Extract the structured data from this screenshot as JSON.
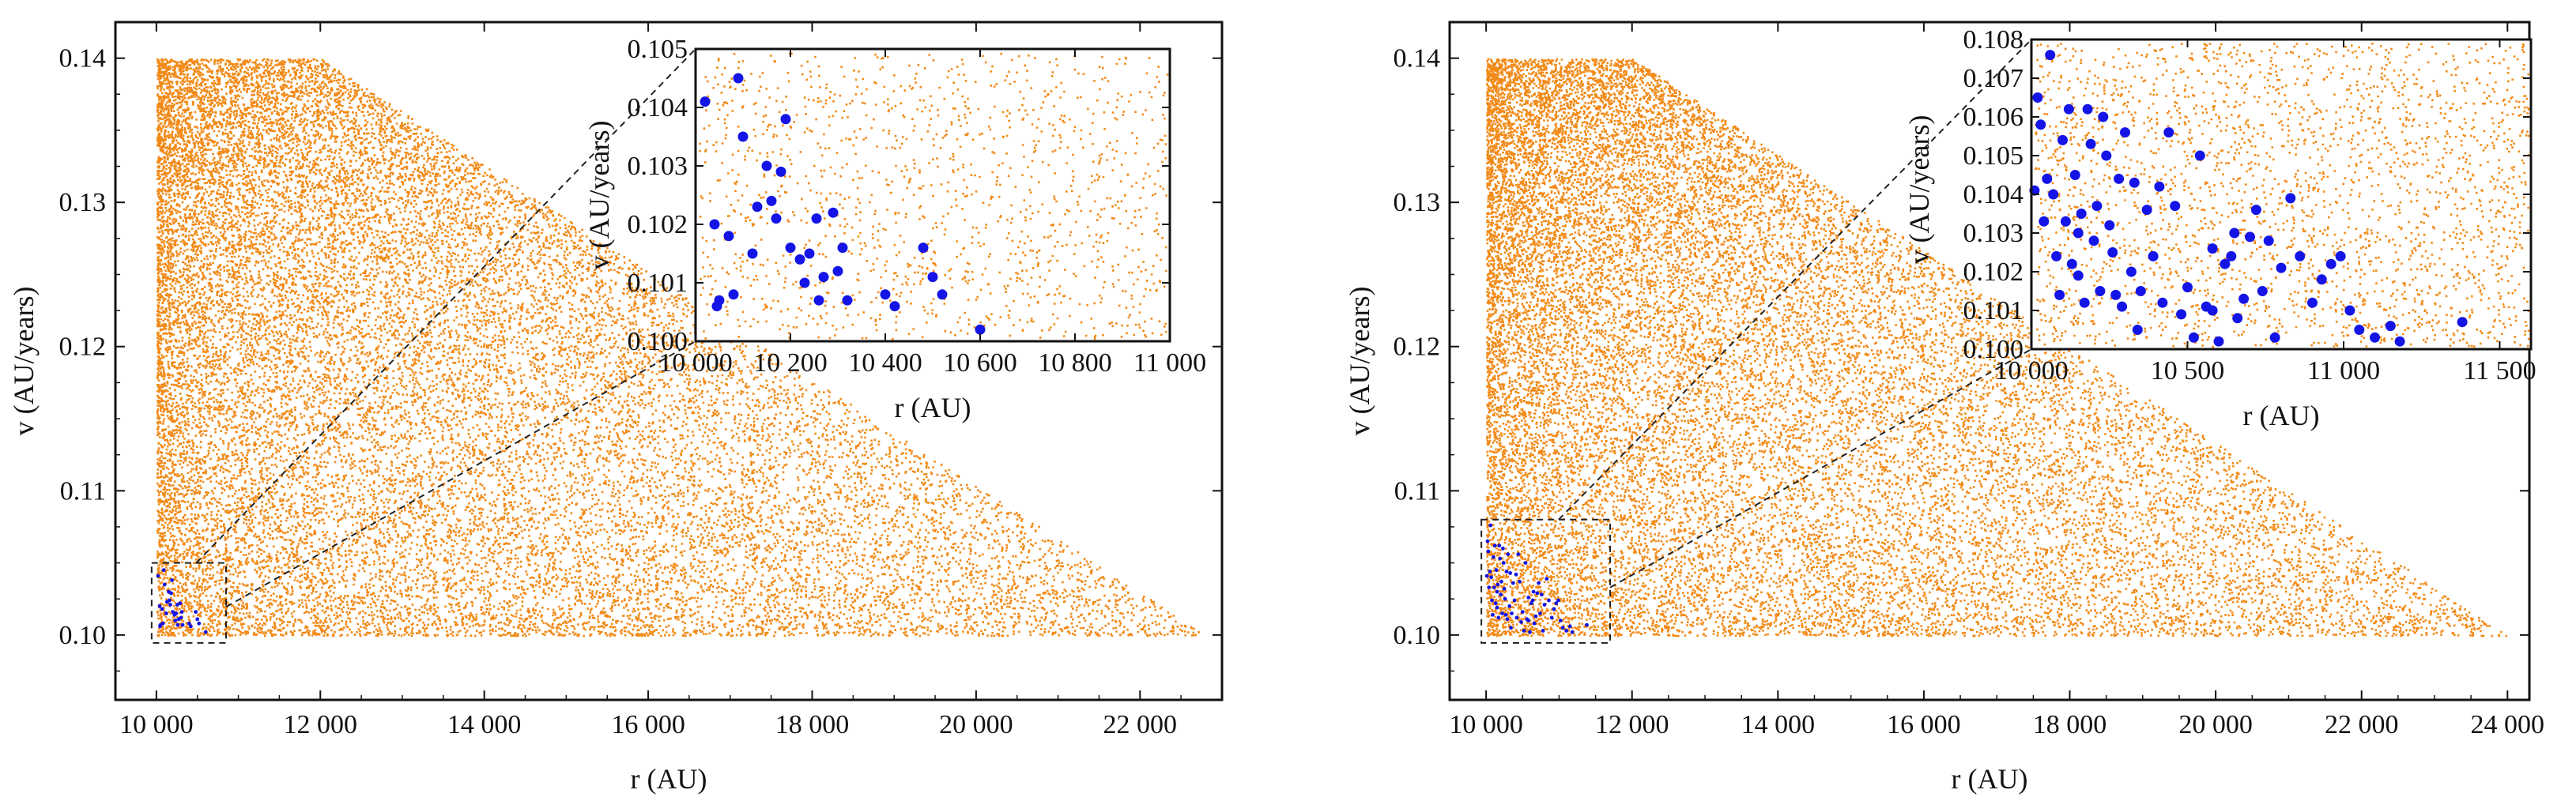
{
  "colors": {
    "background_points": "#f28a17",
    "highlight_points": "#1414e6"
  },
  "chart_data": [
    {
      "type": "scatter",
      "panel": "left",
      "xlabel": "r (AU)",
      "ylabel": "v (AU/years)",
      "xlim": [
        9500,
        23000
      ],
      "ylim": [
        0.0955,
        0.1425
      ],
      "xticks": [
        10000,
        12000,
        14000,
        16000,
        18000,
        20000,
        22000
      ],
      "xtick_labels": [
        "10 000",
        "12 000",
        "14 000",
        "16 000",
        "18 000",
        "20 000",
        "22 000"
      ],
      "yticks": [
        0.1,
        0.11,
        0.12,
        0.13,
        0.14
      ],
      "ytick_labels": [
        "0.10",
        "0.11",
        "0.12",
        "0.13",
        "0.14"
      ],
      "region": {
        "r_min": 10000,
        "v_min": 0.1,
        "v_max": 0.14,
        "r_max_at_vmax": 12000,
        "r_max_at_vmin": 22800
      },
      "zoom_box": {
        "x": [
          10000,
          10850
        ],
        "y": [
          0.1,
          0.105
        ]
      },
      "inset": {
        "xlim": [
          10000,
          11000
        ],
        "ylim": [
          0.1,
          0.105
        ],
        "xticks": [
          10000,
          10200,
          10400,
          10600,
          10800,
          11000
        ],
        "xtick_labels": [
          "10 000",
          "10 200",
          "10 400",
          "10 600",
          "10 800",
          "11 000"
        ],
        "yticks": [
          0.1,
          0.101,
          0.102,
          0.103,
          0.104,
          0.105
        ],
        "ytick_labels": [
          "0.100",
          "0.101",
          "0.102",
          "0.103",
          "0.104",
          "0.105"
        ],
        "xlabel": "r (AU)",
        "ylabel": "v (AU/years)"
      },
      "highlight_points": [
        [
          10020,
          0.1041
        ],
        [
          10045,
          0.1006
        ],
        [
          10050,
          0.1007
        ],
        [
          10040,
          0.102
        ],
        [
          10070,
          0.1018
        ],
        [
          10080,
          0.1008
        ],
        [
          10090,
          0.1045
        ],
        [
          10100,
          0.1035
        ],
        [
          10120,
          0.1015
        ],
        [
          10130,
          0.1023
        ],
        [
          10150,
          0.103
        ],
        [
          10160,
          0.1024
        ],
        [
          10170,
          0.1021
        ],
        [
          10180,
          0.1029
        ],
        [
          10190,
          0.1038
        ],
        [
          10200,
          0.1016
        ],
        [
          10220,
          0.1014
        ],
        [
          10240,
          0.1015
        ],
        [
          10255,
          0.1021
        ],
        [
          10260,
          0.1007
        ],
        [
          10270,
          0.1011
        ],
        [
          10290,
          0.1022
        ],
        [
          10300,
          0.1012
        ],
        [
          10310,
          0.1016
        ],
        [
          10320,
          0.1007
        ],
        [
          10400,
          0.1008
        ],
        [
          10420,
          0.1006
        ],
        [
          10480,
          0.1016
        ],
        [
          10500,
          0.1011
        ],
        [
          10520,
          0.1008
        ],
        [
          10600,
          0.1002
        ],
        [
          10230,
          0.101
        ]
      ]
    },
    {
      "type": "scatter",
      "panel": "right",
      "xlabel": "r (AU)",
      "ylabel": "v (AU/years)",
      "xlim": [
        9500,
        24300
      ],
      "ylim": [
        0.0955,
        0.1425
      ],
      "xticks": [
        10000,
        12000,
        14000,
        16000,
        18000,
        20000,
        22000,
        24000
      ],
      "xtick_labels": [
        "10 000",
        "12 000",
        "14 000",
        "16 000",
        "18 000",
        "20 000",
        "22 000",
        "24 000"
      ],
      "yticks": [
        0.1,
        0.11,
        0.12,
        0.13,
        0.14
      ],
      "ytick_labels": [
        "0.10",
        "0.11",
        "0.12",
        "0.13",
        "0.14"
      ],
      "region": {
        "r_min": 10000,
        "v_min": 0.1,
        "v_max": 0.14,
        "r_max_at_vmax": 12000,
        "r_max_at_vmin": 24000
      },
      "zoom_box": {
        "x": [
          10000,
          11700
        ],
        "y": [
          0.1,
          0.108
        ]
      },
      "inset": {
        "xlim": [
          10000,
          11600
        ],
        "ylim": [
          0.1,
          0.108
        ],
        "xticks": [
          10000,
          10500,
          11000,
          11500
        ],
        "xtick_labels": [
          "10 000",
          "10 500",
          "11 000",
          "11 500"
        ],
        "yticks": [
          0.1,
          0.101,
          0.102,
          0.103,
          0.104,
          0.105,
          0.106,
          0.107,
          0.108
        ],
        "ytick_labels": [
          "0.100",
          "0.101",
          "0.102",
          "0.103",
          "0.104",
          "0.105",
          "0.106",
          "0.107",
          "0.108"
        ],
        "xlabel": "r (AU)",
        "ylabel": "v (AU/years)"
      },
      "highlight_points": [
        [
          10010,
          0.1041
        ],
        [
          10020,
          0.1065
        ],
        [
          10030,
          0.1058
        ],
        [
          10040,
          0.1033
        ],
        [
          10050,
          0.1044
        ],
        [
          10060,
          0.1076
        ],
        [
          10070,
          0.104
        ],
        [
          10080,
          0.1024
        ],
        [
          10090,
          0.1014
        ],
        [
          10100,
          0.1054
        ],
        [
          10110,
          0.1033
        ],
        [
          10120,
          0.1062
        ],
        [
          10130,
          0.1022
        ],
        [
          10140,
          0.1045
        ],
        [
          10150,
          0.1019
        ],
        [
          10160,
          0.1035
        ],
        [
          10170,
          0.1012
        ],
        [
          10180,
          0.1062
        ],
        [
          10190,
          0.1053
        ],
        [
          10200,
          0.1028
        ],
        [
          10210,
          0.1037
        ],
        [
          10220,
          0.1015
        ],
        [
          10230,
          0.106
        ],
        [
          10240,
          0.105
        ],
        [
          10250,
          0.1032
        ],
        [
          10260,
          0.1025
        ],
        [
          10270,
          0.1014
        ],
        [
          10280,
          0.1044
        ],
        [
          10290,
          0.1011
        ],
        [
          10300,
          0.1056
        ],
        [
          10320,
          0.102
        ],
        [
          10340,
          0.1005
        ],
        [
          10350,
          0.1015
        ],
        [
          10370,
          0.1036
        ],
        [
          10390,
          0.1024
        ],
        [
          10410,
          0.1042
        ],
        [
          10420,
          0.1012
        ],
        [
          10440,
          0.1056
        ],
        [
          10460,
          0.1037
        ],
        [
          10480,
          0.1009
        ],
        [
          10500,
          0.1016
        ],
        [
          10520,
          0.1003
        ],
        [
          10540,
          0.105
        ],
        [
          10560,
          0.1011
        ],
        [
          10580,
          0.1026
        ],
        [
          10600,
          0.1002
        ],
        [
          10620,
          0.1022
        ],
        [
          10640,
          0.1024
        ],
        [
          10660,
          0.1008
        ],
        [
          10680,
          0.1013
        ],
        [
          10700,
          0.1029
        ],
        [
          10720,
          0.1036
        ],
        [
          10740,
          0.1015
        ],
        [
          10760,
          0.1028
        ],
        [
          10780,
          0.1003
        ],
        [
          10800,
          0.1021
        ],
        [
          10830,
          0.1039
        ],
        [
          10860,
          0.1024
        ],
        [
          10900,
          0.1012
        ],
        [
          10930,
          0.1018
        ],
        [
          10960,
          0.1022
        ],
        [
          10990,
          0.1024
        ],
        [
          11020,
          0.101
        ],
        [
          11050,
          0.1005
        ],
        [
          11100,
          0.1003
        ],
        [
          11150,
          0.1006
        ],
        [
          11180,
          0.1002
        ],
        [
          11380,
          0.1007
        ],
        [
          10330,
          0.1043
        ],
        [
          10150,
          0.103
        ],
        [
          10650,
          0.103
        ],
        [
          10580,
          0.101
        ]
      ]
    }
  ]
}
